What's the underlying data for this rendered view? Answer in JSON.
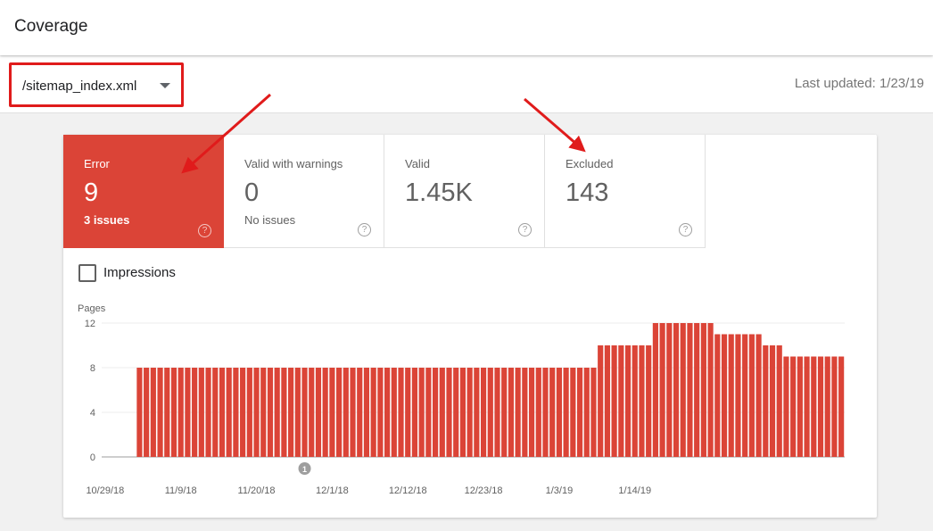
{
  "header": {
    "title": "Coverage"
  },
  "toolbar": {
    "sitemap": "/sitemap_index.xml",
    "last_updated": "Last updated: 1/23/19"
  },
  "tiles": [
    {
      "label": "Error",
      "value": "9",
      "sub": "3 issues",
      "active": true
    },
    {
      "label": "Valid with warnings",
      "value": "0",
      "sub": "No issues"
    },
    {
      "label": "Valid",
      "value": "1.45K",
      "sub": ""
    },
    {
      "label": "Excluded",
      "value": "143",
      "sub": ""
    }
  ],
  "help_glyph": "?",
  "impressions": {
    "label": "Impressions",
    "checked": false
  },
  "chart_data": {
    "type": "bar",
    "ylabel": "Pages",
    "ylim": [
      0,
      12
    ],
    "yticks": [
      0,
      4,
      8,
      12
    ],
    "xticks": [
      "10/29/18",
      "11/9/18",
      "11/20/18",
      "12/1/18",
      "12/12/18",
      "12/23/18",
      "1/3/19",
      "1/14/19"
    ],
    "annotation": {
      "text": "1",
      "date": "11/27/18"
    },
    "bar_color": "#db4437",
    "start_date": "10/29/18",
    "values": [
      0,
      0,
      0,
      0,
      0,
      8,
      8,
      8,
      8,
      8,
      8,
      8,
      8,
      8,
      8,
      8,
      8,
      8,
      8,
      8,
      8,
      8,
      8,
      8,
      8,
      8,
      8,
      8,
      8,
      8,
      8,
      8,
      8,
      8,
      8,
      8,
      8,
      8,
      8,
      8,
      8,
      8,
      8,
      8,
      8,
      8,
      8,
      8,
      8,
      8,
      8,
      8,
      8,
      8,
      8,
      8,
      8,
      8,
      8,
      8,
      8,
      8,
      8,
      8,
      8,
      8,
      8,
      8,
      8,
      8,
      8,
      8,
      10,
      10,
      10,
      10,
      10,
      10,
      10,
      10,
      12,
      12,
      12,
      12,
      12,
      12,
      12,
      12,
      12,
      11,
      11,
      11,
      11,
      11,
      11,
      11,
      10,
      10,
      10,
      9,
      9,
      9,
      9,
      9,
      9,
      9,
      9,
      9
    ]
  }
}
